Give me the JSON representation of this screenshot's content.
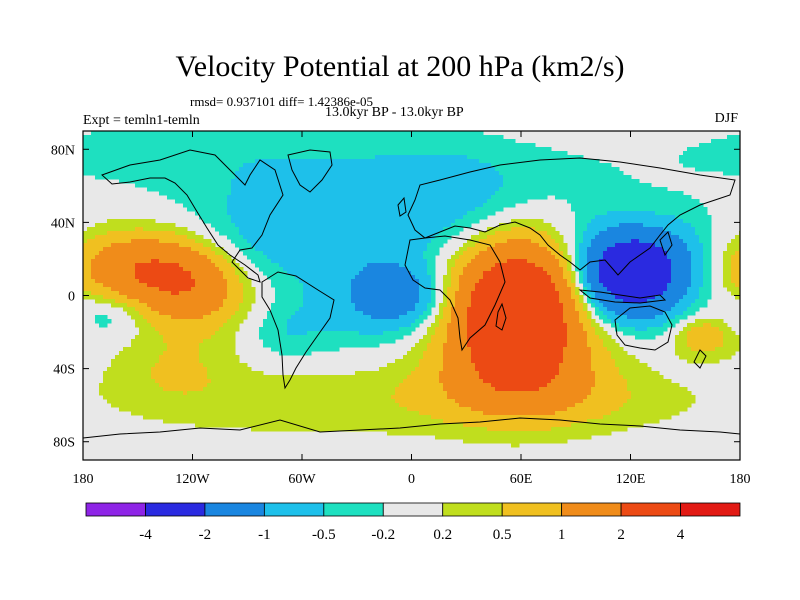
{
  "chart_data": {
    "type": "contour map",
    "title": "Velocity Potential at 200 hPa (km2/s)",
    "stats_line": "rmsd= 0.937101 diff= 1.42386e-05",
    "left_label": "Expt = temln1-temln",
    "center_label": "13.0kyr BP - 13.0kyr BP",
    "right_label": "DJF",
    "x_ticks": [
      "180",
      "120W",
      "60W",
      "0",
      "60E",
      "120E",
      "180"
    ],
    "x_tick_values": [
      -180,
      -120,
      -60,
      0,
      60,
      120,
      180
    ],
    "y_ticks": [
      "80N",
      "40N",
      "0",
      "40S",
      "80S"
    ],
    "y_tick_values": [
      80,
      40,
      0,
      -40,
      -80
    ],
    "xlim": [
      -180,
      180
    ],
    "ylim": [
      -90,
      90
    ],
    "contour_levels": [
      "-4",
      "-2",
      "-1",
      "-0.5",
      "-0.2",
      "0.2",
      "0.5",
      "1",
      "2",
      "4"
    ],
    "color_bins": [
      "#8e24e6",
      "#2a2ae0",
      "#1a86e0",
      "#1ec0ea",
      "#1ee0c0",
      "#e8e8e8",
      "#c0de1e",
      "#f0c020",
      "#f08c1a",
      "#ec4a14",
      "#e21a14"
    ],
    "background_color": "#e8e8e8",
    "anomalies": [
      {
        "lon": -150,
        "lat": 15,
        "sx": 28,
        "sy": 14,
        "value": 1.7
      },
      {
        "lon": -120,
        "lat": 3,
        "sx": 22,
        "sy": 16,
        "value": 1.4
      },
      {
        "lon": -165,
        "lat": -10,
        "sx": 15,
        "sy": 9,
        "value": -0.55
      },
      {
        "lon": -130,
        "lat": -40,
        "sx": 24,
        "sy": 14,
        "value": 0.45
      },
      {
        "lon": -50,
        "lat": -58,
        "sx": 70,
        "sy": 14,
        "value": 0.4
      },
      {
        "lon": -120,
        "lat": 78,
        "sx": 90,
        "sy": 16,
        "value": -0.3
      },
      {
        "lon": -60,
        "lat": 42,
        "sx": 45,
        "sy": 25,
        "value": -0.55
      },
      {
        "lon": -90,
        "lat": 28,
        "sx": 22,
        "sy": 18,
        "value": -0.25
      },
      {
        "lon": -30,
        "lat": 25,
        "sx": 35,
        "sy": 14,
        "value": -0.35
      },
      {
        "lon": 20,
        "lat": 50,
        "sx": 30,
        "sy": 20,
        "value": -0.5
      },
      {
        "lon": 40,
        "lat": 60,
        "sx": 50,
        "sy": 18,
        "value": -0.3
      },
      {
        "lon": -5,
        "lat": 0,
        "sx": 18,
        "sy": 12,
        "value": -1.3
      },
      {
        "lon": -30,
        "lat": -8,
        "sx": 25,
        "sy": 16,
        "value": -0.5
      },
      {
        "lon": -70,
        "lat": -20,
        "sx": 16,
        "sy": 12,
        "value": -0.4
      },
      {
        "lon": 105,
        "lat": 25,
        "sx": 20,
        "sy": 16,
        "value": -0.6
      },
      {
        "lon": 122,
        "lat": 12,
        "sx": 18,
        "sy": 15,
        "value": -3.0
      },
      {
        "lon": 100,
        "lat": 5,
        "sx": 12,
        "sy": 12,
        "value": -0.5
      },
      {
        "lon": 150,
        "lat": 20,
        "sx": 18,
        "sy": 18,
        "value": -0.6
      },
      {
        "lon": 160,
        "lat": -22,
        "sx": 12,
        "sy": 8,
        "value": 0.9
      },
      {
        "lon": 120,
        "lat": -12,
        "sx": 25,
        "sy": 10,
        "value": -0.3
      },
      {
        "lon": 58,
        "lat": -8,
        "sx": 25,
        "sy": 26,
        "value": 3.8
      },
      {
        "lon": 58,
        "lat": -45,
        "sx": 35,
        "sy": 16,
        "value": 0.9
      },
      {
        "lon": 90,
        "lat": -58,
        "sx": 50,
        "sy": 12,
        "value": 0.35
      }
    ]
  }
}
